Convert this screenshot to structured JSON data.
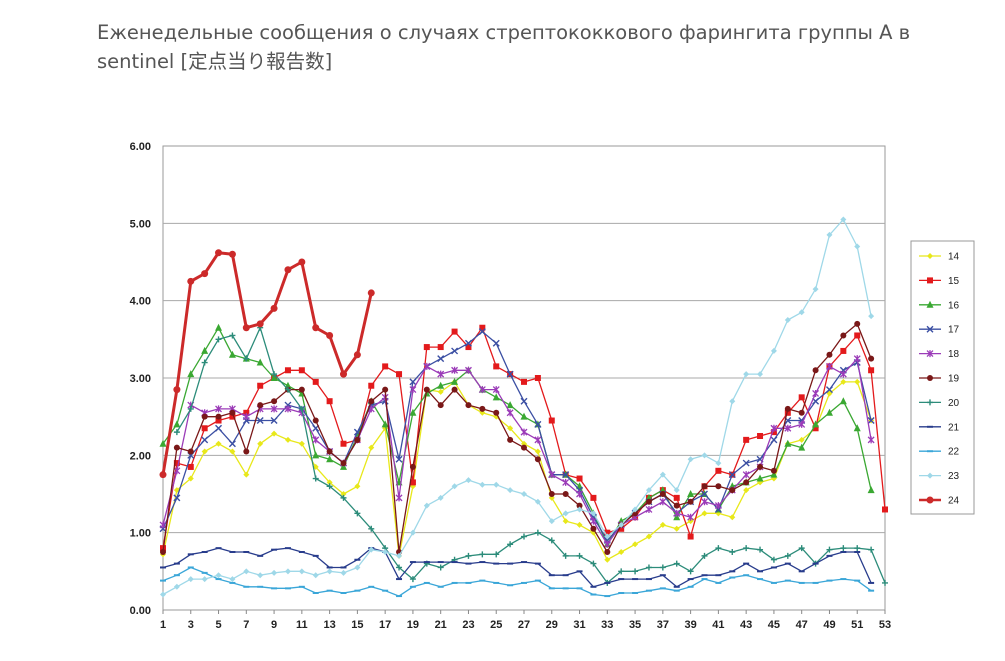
{
  "page": {
    "title": "Еженедельные сообщения о случаях стрептококкового фарингита группы А в sentinel [定点当り報告数]"
  },
  "chart_data": {
    "type": "line",
    "title": "",
    "xlabel": "",
    "ylabel": "",
    "xlim": [
      1,
      53
    ],
    "ylim": [
      0,
      6
    ],
    "grid": true,
    "legend_position": "right",
    "x_tick_labels": [
      "1",
      "3",
      "5",
      "7",
      "9",
      "11",
      "13",
      "15",
      "17",
      "19",
      "21",
      "23",
      "25",
      "27",
      "29",
      "31",
      "33",
      "35",
      "37",
      "39",
      "41",
      "43",
      "45",
      "47",
      "49",
      "51",
      "53"
    ],
    "y_tick_labels": [
      "0.00",
      "1.00",
      "2.00",
      "3.00",
      "4.00",
      "5.00",
      "6.00"
    ],
    "series": [
      {
        "name": "14",
        "color": "#e8e81a",
        "marker": "diamond",
        "values": [
          0.72,
          1.55,
          1.7,
          2.05,
          2.15,
          2.05,
          1.75,
          2.15,
          2.28,
          2.2,
          2.15,
          1.85,
          1.65,
          1.5,
          1.6,
          2.1,
          2.35,
          0.7,
          1.6,
          2.85,
          2.82,
          2.95,
          2.65,
          2.55,
          2.5,
          2.35,
          2.15,
          2.05,
          1.45,
          1.15,
          1.1,
          1.0,
          0.65,
          0.75,
          0.85,
          0.95,
          1.1,
          1.05,
          1.15,
          1.25,
          1.25,
          1.2,
          1.55,
          1.65,
          1.7,
          2.15,
          2.2,
          2.35,
          2.8,
          2.95,
          2.95,
          2.45,
          null
        ]
      },
      {
        "name": "15",
        "color": "#e31a1c",
        "marker": "square",
        "values": [
          0.8,
          1.9,
          1.85,
          2.35,
          2.45,
          2.5,
          2.55,
          2.9,
          3.0,
          3.1,
          3.1,
          2.95,
          2.7,
          2.15,
          2.2,
          2.9,
          3.15,
          3.05,
          1.65,
          3.4,
          3.4,
          3.6,
          3.4,
          3.65,
          3.15,
          3.05,
          2.95,
          3.0,
          2.45,
          1.75,
          1.7,
          1.45,
          1.0,
          1.05,
          1.2,
          1.45,
          1.55,
          1.45,
          0.95,
          1.6,
          1.8,
          1.75,
          2.2,
          2.25,
          2.3,
          2.55,
          2.75,
          2.35,
          3.15,
          3.35,
          3.55,
          3.1,
          1.3
        ]
      },
      {
        "name": "16",
        "color": "#3aa832",
        "marker": "triangle",
        "values": [
          2.15,
          2.4,
          3.05,
          3.35,
          3.65,
          3.3,
          3.25,
          3.2,
          3.0,
          2.9,
          2.8,
          2.0,
          1.95,
          1.85,
          2.25,
          2.7,
          2.4,
          1.65,
          2.55,
          2.8,
          2.9,
          2.95,
          3.1,
          2.85,
          2.75,
          2.65,
          2.5,
          2.4,
          1.75,
          1.75,
          1.6,
          1.25,
          0.85,
          1.15,
          1.25,
          1.45,
          1.55,
          1.2,
          1.5,
          1.5,
          1.3,
          1.6,
          1.65,
          1.7,
          1.75,
          2.15,
          2.1,
          2.4,
          2.55,
          2.7,
          2.35,
          1.55,
          null
        ]
      },
      {
        "name": "17",
        "color": "#3b4fa3",
        "marker": "x",
        "values": [
          1.05,
          1.45,
          2.0,
          2.2,
          2.35,
          2.15,
          2.45,
          2.45,
          2.45,
          2.65,
          2.6,
          2.35,
          2.05,
          1.9,
          2.3,
          2.65,
          2.7,
          1.95,
          2.95,
          3.15,
          3.25,
          3.35,
          3.45,
          3.6,
          3.45,
          3.05,
          2.7,
          2.4,
          1.75,
          1.75,
          1.55,
          1.2,
          0.9,
          1.1,
          1.25,
          1.4,
          1.5,
          1.25,
          1.4,
          1.5,
          1.3,
          1.75,
          1.9,
          1.95,
          2.2,
          2.45,
          2.45,
          2.7,
          2.85,
          3.1,
          3.2,
          2.45,
          null
        ]
      },
      {
        "name": "18",
        "color": "#9b3bb8",
        "marker": "asterisk",
        "values": [
          1.1,
          1.8,
          2.65,
          2.55,
          2.6,
          2.6,
          2.5,
          2.6,
          2.6,
          2.6,
          2.55,
          2.2,
          2.05,
          1.9,
          2.2,
          2.6,
          2.75,
          1.45,
          2.85,
          3.15,
          3.05,
          3.1,
          3.1,
          2.85,
          2.85,
          2.55,
          2.3,
          2.2,
          1.75,
          1.65,
          1.5,
          1.15,
          0.85,
          1.1,
          1.2,
          1.3,
          1.4,
          1.25,
          1.2,
          1.4,
          1.35,
          1.55,
          1.75,
          1.85,
          2.35,
          2.35,
          2.4,
          2.8,
          3.15,
          3.05,
          3.25,
          2.2,
          null
        ]
      },
      {
        "name": "19",
        "color": "#7a1818",
        "marker": "circle",
        "values": [
          0.75,
          2.1,
          2.05,
          2.5,
          2.5,
          2.55,
          2.05,
          2.65,
          2.7,
          2.85,
          2.85,
          2.45,
          2.05,
          1.9,
          2.2,
          2.7,
          2.85,
          0.75,
          1.85,
          2.85,
          2.65,
          2.85,
          2.65,
          2.6,
          2.55,
          2.2,
          2.1,
          1.95,
          1.5,
          1.5,
          1.35,
          1.05,
          0.75,
          1.1,
          1.25,
          1.4,
          1.5,
          1.35,
          1.4,
          1.6,
          1.6,
          1.55,
          1.65,
          1.85,
          1.8,
          2.6,
          2.55,
          3.1,
          3.3,
          3.55,
          3.7,
          3.25,
          null
        ]
      },
      {
        "name": "20",
        "color": "#2c8c7a",
        "marker": "plus",
        "values": [
          null,
          2.3,
          2.6,
          3.2,
          3.5,
          3.55,
          3.25,
          3.65,
          3.05,
          2.85,
          2.6,
          1.7,
          1.6,
          1.45,
          1.25,
          1.05,
          0.8,
          0.55,
          0.4,
          0.6,
          0.55,
          0.65,
          0.7,
          0.72,
          0.72,
          0.85,
          0.95,
          1.0,
          0.9,
          0.7,
          0.7,
          0.6,
          0.35,
          0.5,
          0.5,
          0.55,
          0.55,
          0.6,
          0.5,
          0.7,
          0.8,
          0.75,
          0.8,
          0.78,
          0.65,
          0.7,
          0.8,
          0.6,
          0.78,
          0.8,
          0.8,
          0.78,
          0.35
        ]
      },
      {
        "name": "21",
        "color": "#283c8c",
        "marker": "dash",
        "values": [
          0.55,
          0.6,
          0.72,
          0.75,
          0.8,
          0.75,
          0.75,
          0.7,
          0.78,
          0.8,
          0.75,
          0.7,
          0.55,
          0.55,
          0.65,
          0.8,
          0.75,
          0.4,
          0.62,
          0.62,
          0.62,
          0.62,
          0.6,
          0.62,
          0.6,
          0.6,
          0.62,
          0.6,
          0.45,
          0.45,
          0.5,
          0.3,
          0.35,
          0.4,
          0.4,
          0.4,
          0.45,
          0.3,
          0.4,
          0.45,
          0.45,
          0.5,
          0.6,
          0.5,
          0.55,
          0.6,
          0.5,
          0.6,
          0.7,
          0.75,
          0.75,
          0.35,
          null
        ]
      },
      {
        "name": "22",
        "color": "#3aa6d8",
        "marker": "dash",
        "values": [
          0.38,
          0.45,
          0.55,
          0.48,
          0.4,
          0.35,
          0.3,
          0.3,
          0.28,
          0.28,
          0.3,
          0.22,
          0.25,
          0.22,
          0.25,
          0.3,
          0.25,
          0.18,
          0.3,
          0.35,
          0.3,
          0.35,
          0.35,
          0.38,
          0.35,
          0.32,
          0.35,
          0.38,
          0.28,
          0.28,
          0.28,
          0.2,
          0.18,
          0.22,
          0.22,
          0.25,
          0.28,
          0.25,
          0.3,
          0.4,
          0.35,
          0.42,
          0.45,
          0.4,
          0.35,
          0.38,
          0.35,
          0.35,
          0.38,
          0.4,
          0.38,
          0.25,
          null
        ]
      },
      {
        "name": "23",
        "color": "#9fd8e8",
        "marker": "diamond",
        "values": [
          0.2,
          0.3,
          0.4,
          0.4,
          0.45,
          0.4,
          0.5,
          0.45,
          0.48,
          0.5,
          0.5,
          0.45,
          0.5,
          0.48,
          0.55,
          0.78,
          0.75,
          0.7,
          1.0,
          1.35,
          1.45,
          1.6,
          1.68,
          1.62,
          1.62,
          1.55,
          1.5,
          1.4,
          1.15,
          1.25,
          1.3,
          1.25,
          0.95,
          1.1,
          1.3,
          1.55,
          1.75,
          1.55,
          1.95,
          2.0,
          1.9,
          2.7,
          3.05,
          3.05,
          3.35,
          3.75,
          3.85,
          4.15,
          4.85,
          5.05,
          4.7,
          3.8,
          null
        ]
      },
      {
        "name": "24",
        "color": "#cc2a2a",
        "marker": "circle-big",
        "values": [
          1.75,
          2.85,
          4.25,
          4.35,
          4.62,
          4.6,
          3.65,
          3.7,
          3.9,
          4.4,
          4.5,
          3.65,
          3.55,
          3.05,
          3.3,
          4.1,
          null,
          null,
          null,
          null,
          null,
          null,
          null,
          null,
          null,
          null,
          null,
          null,
          null,
          null,
          null,
          null,
          null,
          null,
          null,
          null,
          null,
          null,
          null,
          null,
          null,
          null,
          null,
          null,
          null,
          null,
          null,
          null,
          null,
          null,
          null,
          null,
          null
        ]
      }
    ]
  }
}
